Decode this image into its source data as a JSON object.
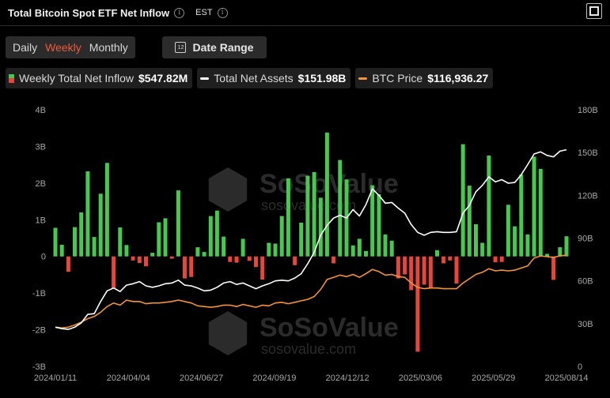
{
  "header": {
    "title": "Total Bitcoin Spot ETF Net Inflow",
    "timezone": "EST",
    "info_icon": "info-icon",
    "fullscreen_icon": "fullscreen-icon"
  },
  "controls": {
    "periods": [
      "Daily",
      "Weekly",
      "Monthly"
    ],
    "active_period": "Weekly",
    "date_range_label": "Date Range",
    "date_range_icon": "calendar-icon"
  },
  "legend": [
    {
      "name": "Weekly Total Net Inflow",
      "value": "$547.82M"
    },
    {
      "name": "Total Net Assets",
      "value": "$151.98B"
    },
    {
      "name": "BTC Price",
      "value": "$116,936.27"
    }
  ],
  "watermark": {
    "brand": "SoSoValue",
    "url": "sosovalue.com"
  },
  "colors": {
    "inflow_positive": "#45c94f",
    "inflow_negative": "#e8463a",
    "net_assets_line": "#ffffff",
    "btc_price_line": "#f5923a",
    "background": "#000000",
    "active_tab": "#f05a3c"
  },
  "chart_data": {
    "type": "bar",
    "title": "Total Bitcoin Spot ETF Net Inflow",
    "x_tick_labels": [
      "2024/01/11",
      "2024/04/04",
      "2024/06/27",
      "2024/09/19",
      "2024/12/12",
      "2025/03/06",
      "2025/05/29",
      "2025/08/14"
    ],
    "x_start": "2024/01/11",
    "x_end": "2025/08/14",
    "left_axis": {
      "ticks": [
        "4B",
        "3B",
        "2B",
        "1B",
        "0",
        "-1B",
        "-2B",
        "-3B"
      ],
      "ylim": [
        -3,
        4
      ],
      "unit": "B USD"
    },
    "right_axis": {
      "ticks": [
        "180B",
        "150B",
        "120B",
        "90B",
        "60B",
        "30B",
        "0"
      ],
      "ylim": [
        0,
        180
      ],
      "unit": "B USD"
    },
    "grid": false,
    "series": [
      {
        "name": "Weekly Total Net Inflow",
        "type": "bar",
        "axis": "left",
        "values": [
          0.78,
          0.32,
          -0.42,
          0.8,
          1.2,
          2.32,
          0.53,
          1.71,
          2.55,
          -0.88,
          0.79,
          0.31,
          -0.11,
          -0.18,
          -0.27,
          0.1,
          0.93,
          1.04,
          -0.06,
          1.8,
          -0.6,
          -0.56,
          0.25,
          0.12,
          1.1,
          1.25,
          0.54,
          -0.15,
          -0.17,
          0.48,
          -0.12,
          -0.29,
          -0.63,
          0.37,
          0.35,
          1.1,
          2.13,
          -0.24,
          0.92,
          2.2,
          2.3,
          1.6,
          3.38,
          -0.19,
          2.63,
          2.1,
          0.3,
          0.48,
          0.15,
          1.94,
          1.7,
          0.6,
          0.43,
          -0.6,
          -0.49,
          -0.92,
          -2.6,
          -0.77,
          -0.86,
          0.17,
          -0.19,
          -0.11,
          -0.74,
          3.06,
          1.93,
          0.88,
          0.37,
          2.75,
          -0.16,
          -0.15,
          1.41,
          0.82,
          2.23,
          0.6,
          2.72,
          2.39,
          0.07,
          -0.64,
          0.25,
          0.55
        ]
      },
      {
        "name": "Total Net Assets",
        "type": "line",
        "axis": "right",
        "values": [
          27.5,
          26.5,
          26.0,
          27.5,
          30.5,
          36.5,
          37.0,
          45.5,
          53.0,
          55.0,
          52.5,
          57.0,
          58.0,
          59.5,
          56.5,
          55.5,
          56.5,
          58.0,
          58.5,
          60.5,
          57.0,
          56.5,
          55.0,
          53.0,
          53.5,
          55.5,
          58.5,
          59.5,
          57.5,
          58.5,
          56.5,
          54.5,
          56.5,
          58.0,
          60.0,
          60.5,
          60.0,
          62.0,
          65.0,
          72.0,
          80.0,
          92.0,
          99.0,
          104.0,
          106.0,
          104.0,
          110.0,
          105.5,
          113.5,
          124.5,
          120.0,
          114.5,
          115.0,
          111.0,
          107.5,
          99.5,
          94.0,
          92.0,
          94.0,
          94.5,
          94.0,
          94.0,
          94.5,
          107.5,
          113.0,
          122.5,
          127.0,
          133.0,
          129.5,
          131.0,
          128.5,
          129.0,
          134.5,
          141.5,
          149.0,
          150.5,
          148.0,
          147.0,
          151.0,
          151.98
        ]
      },
      {
        "name": "BTC Price",
        "type": "line",
        "axis": "right",
        "values": [
          27.5,
          27.0,
          27.5,
          29.0,
          31.0,
          33.5,
          35.0,
          38.0,
          42.0,
          44.5,
          43.0,
          46.5,
          45.5,
          45.5,
          44.0,
          44.5,
          44.5,
          45.0,
          45.5,
          46.5,
          45.5,
          44.5,
          42.5,
          42.0,
          41.5,
          42.0,
          43.0,
          43.0,
          42.0,
          43.5,
          42.5,
          41.5,
          43.0,
          42.5,
          44.5,
          45.0,
          44.0,
          45.0,
          46.0,
          47.0,
          49.0,
          54.0,
          61.0,
          62.5,
          64.0,
          63.0,
          64.5,
          62.5,
          65.0,
          68.0,
          66.5,
          64.0,
          64.5,
          63.0,
          62.5,
          58.5,
          55.5,
          54.5,
          55.0,
          55.0,
          54.5,
          54.5,
          54.5,
          58.5,
          61.5,
          64.5,
          66.0,
          68.5,
          67.0,
          67.5,
          67.0,
          67.5,
          69.0,
          70.5,
          76.0,
          77.5,
          77.0,
          76.5,
          77.5,
          78.0
        ]
      }
    ]
  }
}
